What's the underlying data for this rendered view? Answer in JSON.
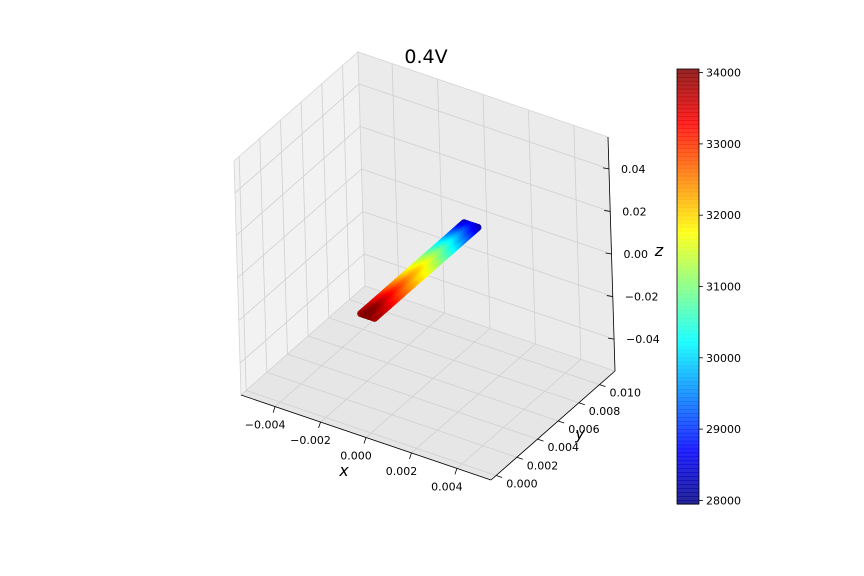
{
  "chart_data": {
    "type": "scatter",
    "title": "0.4V",
    "projection": "3d",
    "xlabel": "x",
    "ylabel": "y",
    "zlabel": "z",
    "xlim": [
      -0.0055,
      0.0055
    ],
    "ylim": [
      -0.0005,
      0.0115
    ],
    "zlim": [
      -0.055,
      0.055
    ],
    "x_ticks": [
      "−0.004",
      "−0.002",
      "0.000",
      "0.002",
      "0.004"
    ],
    "y_ticks": [
      "0.000",
      "0.002",
      "0.004",
      "0.006",
      "0.008",
      "0.010"
    ],
    "z_ticks": [
      "−0.04",
      "−0.02",
      "0.00",
      "0.02",
      "0.04"
    ],
    "colormap": "jet",
    "colorbar": {
      "min": 27950,
      "max": 34050,
      "ticks": [
        "28000",
        "29000",
        "30000",
        "31000",
        "32000",
        "33000",
        "34000"
      ]
    },
    "grid": true,
    "strip": {
      "x_range": [
        -0.0003,
        0.0003
      ],
      "y_range": [
        0.0,
        0.01
      ],
      "z": 0.0
    },
    "samples": [
      {
        "y": 0.0,
        "value": 34000
      },
      {
        "y": 0.001,
        "value": 33700
      },
      {
        "y": 0.002,
        "value": 33200
      },
      {
        "y": 0.003,
        "value": 32700
      },
      {
        "y": 0.004,
        "value": 32200
      },
      {
        "y": 0.005,
        "value": 31800
      },
      {
        "y": 0.006,
        "value": 31300
      },
      {
        "y": 0.007,
        "value": 30700
      },
      {
        "y": 0.008,
        "value": 30000
      },
      {
        "y": 0.009,
        "value": 29200
      },
      {
        "y": 0.01,
        "value": 28400
      }
    ]
  }
}
